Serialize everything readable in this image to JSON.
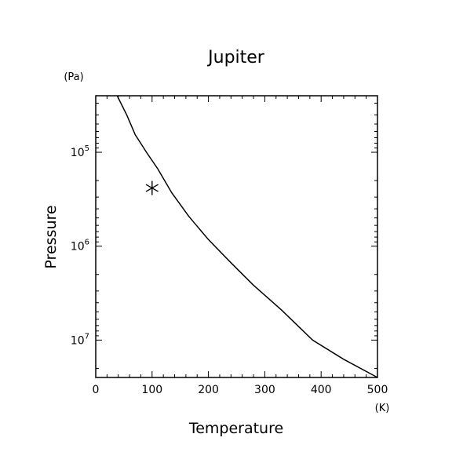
{
  "chart_data": {
    "type": "line",
    "title": "Jupiter",
    "xlabel": "Temperature",
    "ylabel": "Pressure",
    "x_unit": "(K)",
    "y_unit": "(Pa)",
    "xlim": [
      0,
      500
    ],
    "ylim": [
      25000,
      25000000
    ],
    "y_scale": "log",
    "y_inverted": true,
    "grid": false,
    "x_ticks": [
      0,
      100,
      200,
      300,
      400,
      500
    ],
    "x_tick_labels": [
      "0",
      "100",
      "200",
      "300",
      "400",
      "500"
    ],
    "y_ticks": [
      100000,
      1000000,
      10000000
    ],
    "y_tick_labels": [
      {
        "base": "10",
        "exp": "5"
      },
      {
        "base": "10",
        "exp": "6"
      },
      {
        "base": "10",
        "exp": "7"
      }
    ],
    "series": [
      {
        "x": [
          38,
          55,
          70,
          90,
          110,
          135,
          165,
          200,
          240,
          280,
          330,
          385,
          440,
          500
        ],
        "y": [
          25000,
          40000,
          65000,
          100000,
          150000,
          270000,
          480000,
          850000,
          1500000,
          2600000,
          4800000,
          10000000,
          16000000,
          25000000
        ]
      },
      {
        "type": "scatter",
        "marker": "asterisk",
        "x": [
          100
        ],
        "y": [
          240000
        ]
      }
    ]
  }
}
